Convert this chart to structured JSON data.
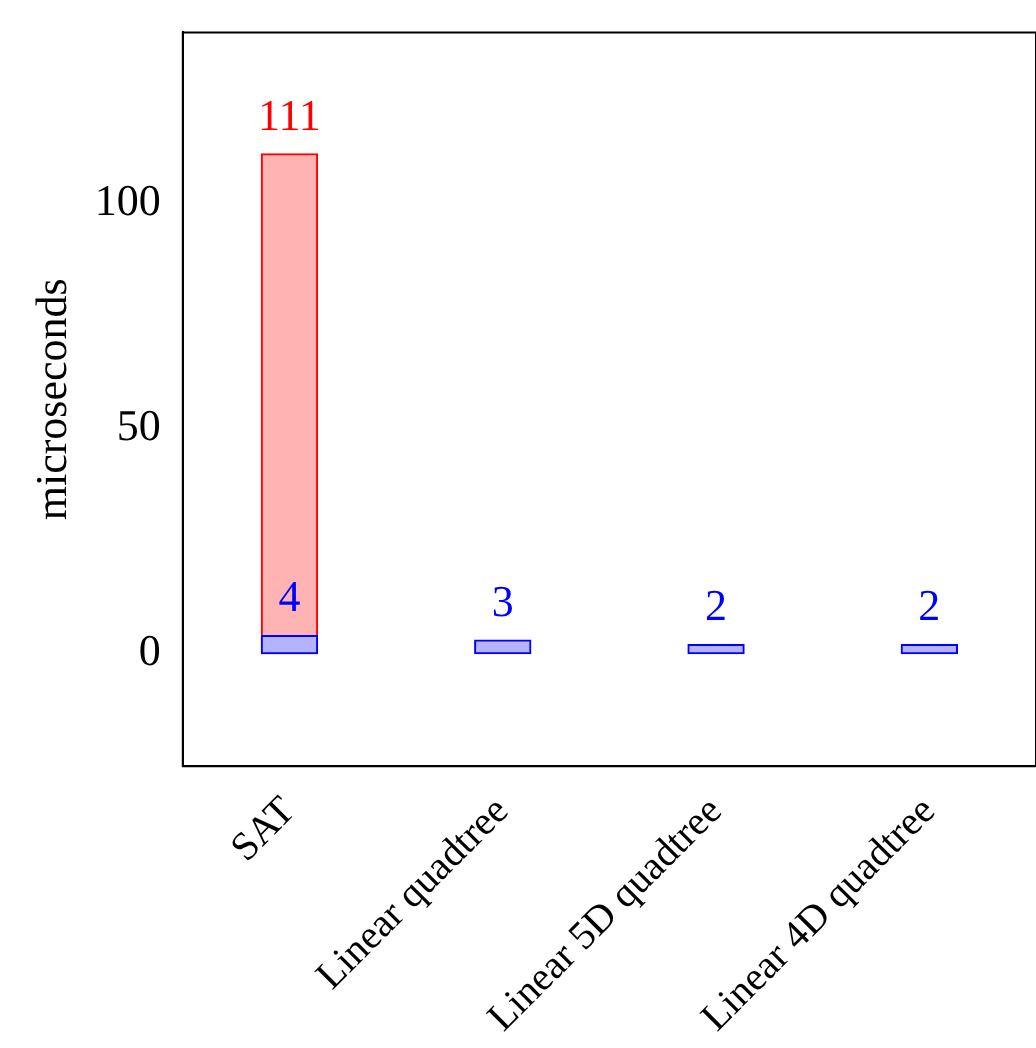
{
  "chart_data": {
    "type": "bar",
    "ylabel": "microseconds",
    "categories": [
      "SAT",
      "Linear quadtree",
      "Linear 5D quadtree",
      "Linear 4D quadtree"
    ],
    "series": [
      {
        "color": "#ffb3b3",
        "values": [
          111,
          null,
          null,
          null
        ]
      },
      {
        "color": "#b3b3ff",
        "values": [
          4,
          3,
          2,
          2
        ]
      }
    ],
    "ylim": [
      -25,
      138
    ],
    "yticks": [
      0,
      50,
      100
    ],
    "grid": false,
    "legend": false,
    "data_labels": true
  }
}
